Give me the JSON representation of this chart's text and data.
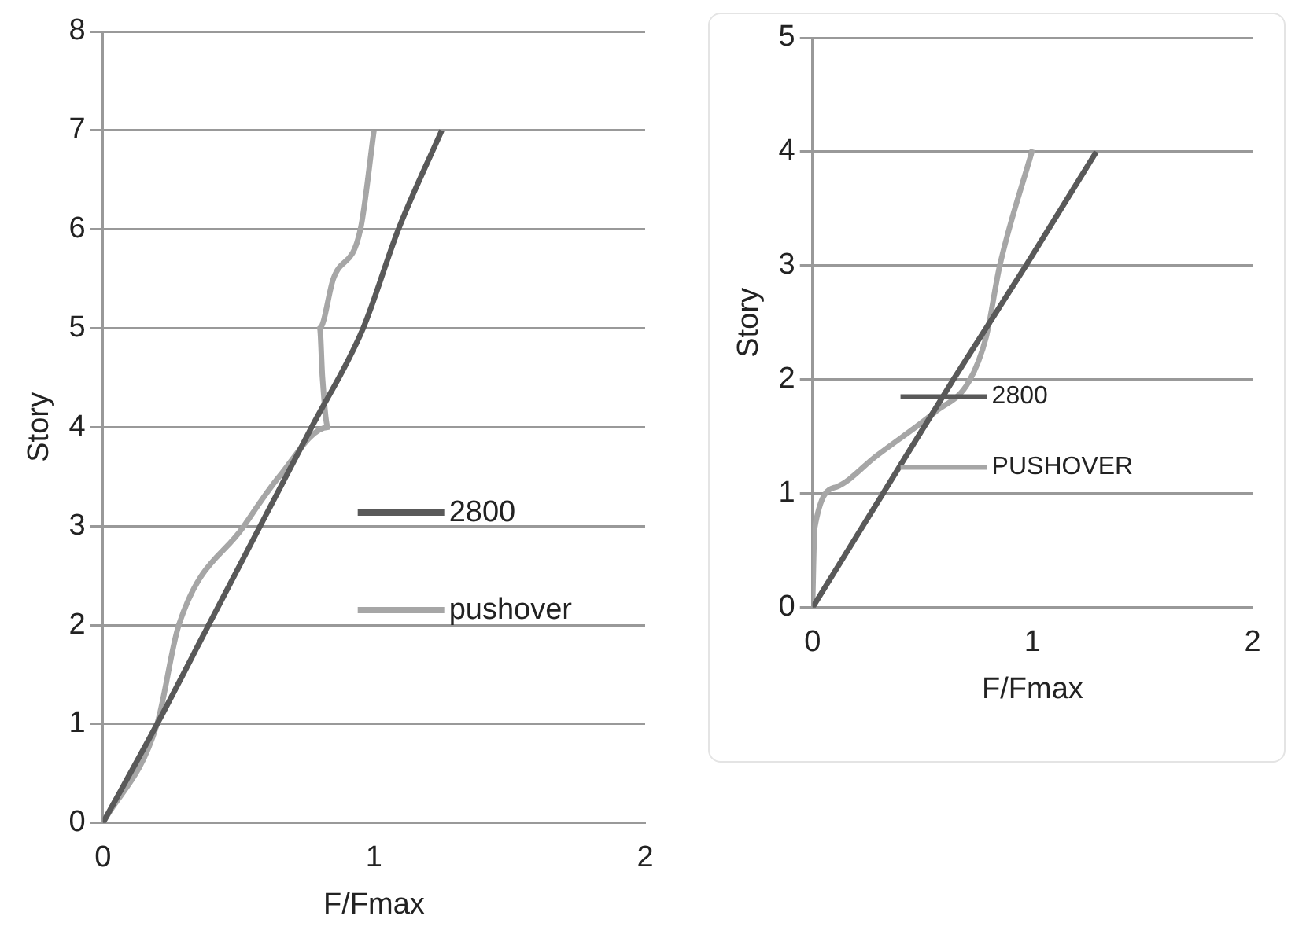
{
  "chart_data": [
    {
      "type": "line",
      "xlabel": "F/Fmax",
      "ylabel": "Story",
      "xlim": [
        0,
        2
      ],
      "xticks": [
        0,
        1,
        2
      ],
      "ylim": [
        0,
        8
      ],
      "yticks": [
        0,
        1,
        2,
        3,
        4,
        5,
        6,
        7,
        8
      ],
      "grid": "y",
      "legend": "right",
      "marker": "none",
      "series": [
        {
          "name": "2800",
          "color": "#595959",
          "x": [
            0,
            0.2,
            0.39,
            0.58,
            0.77,
            0.96,
            1.09,
            1.25
          ],
          "values": [
            0,
            1,
            2,
            3,
            4,
            5,
            6,
            7
          ]
        },
        {
          "name": "pushover",
          "color": "#a6a6a6",
          "x": [
            0,
            0.2,
            0.28,
            0.52,
            0.65,
            0.83,
            0.81,
            0.8,
            0.85,
            0.95,
            1.0
          ],
          "values": [
            0,
            1,
            2,
            3,
            3.5,
            4,
            4.5,
            5,
            5.5,
            6,
            7
          ]
        }
      ]
    },
    {
      "type": "line",
      "xlabel": "F/Fmax",
      "ylabel": "Story",
      "xlim": [
        0,
        2
      ],
      "xticks": [
        0,
        1,
        2
      ],
      "ylim": [
        0,
        5
      ],
      "yticks": [
        0,
        1,
        2,
        3,
        4,
        5
      ],
      "grid": "y",
      "legend": "left",
      "marker": "none",
      "series": [
        {
          "name": "2800",
          "color": "#595959",
          "x": [
            0,
            0.32,
            0.64,
            0.97,
            1.29
          ],
          "values": [
            0,
            1,
            2,
            3,
            4
          ]
        },
        {
          "name": "PUSHOVER",
          "color": "#a6a6a6",
          "x": [
            0,
            0.01,
            0.11,
            0.29,
            0.56,
            0.71,
            0.79,
            0.85,
            1.0
          ],
          "values": [
            0,
            0.7,
            1.06,
            1.33,
            1.72,
            1.98,
            2.38,
            2.99,
            4.02
          ]
        }
      ]
    }
  ]
}
